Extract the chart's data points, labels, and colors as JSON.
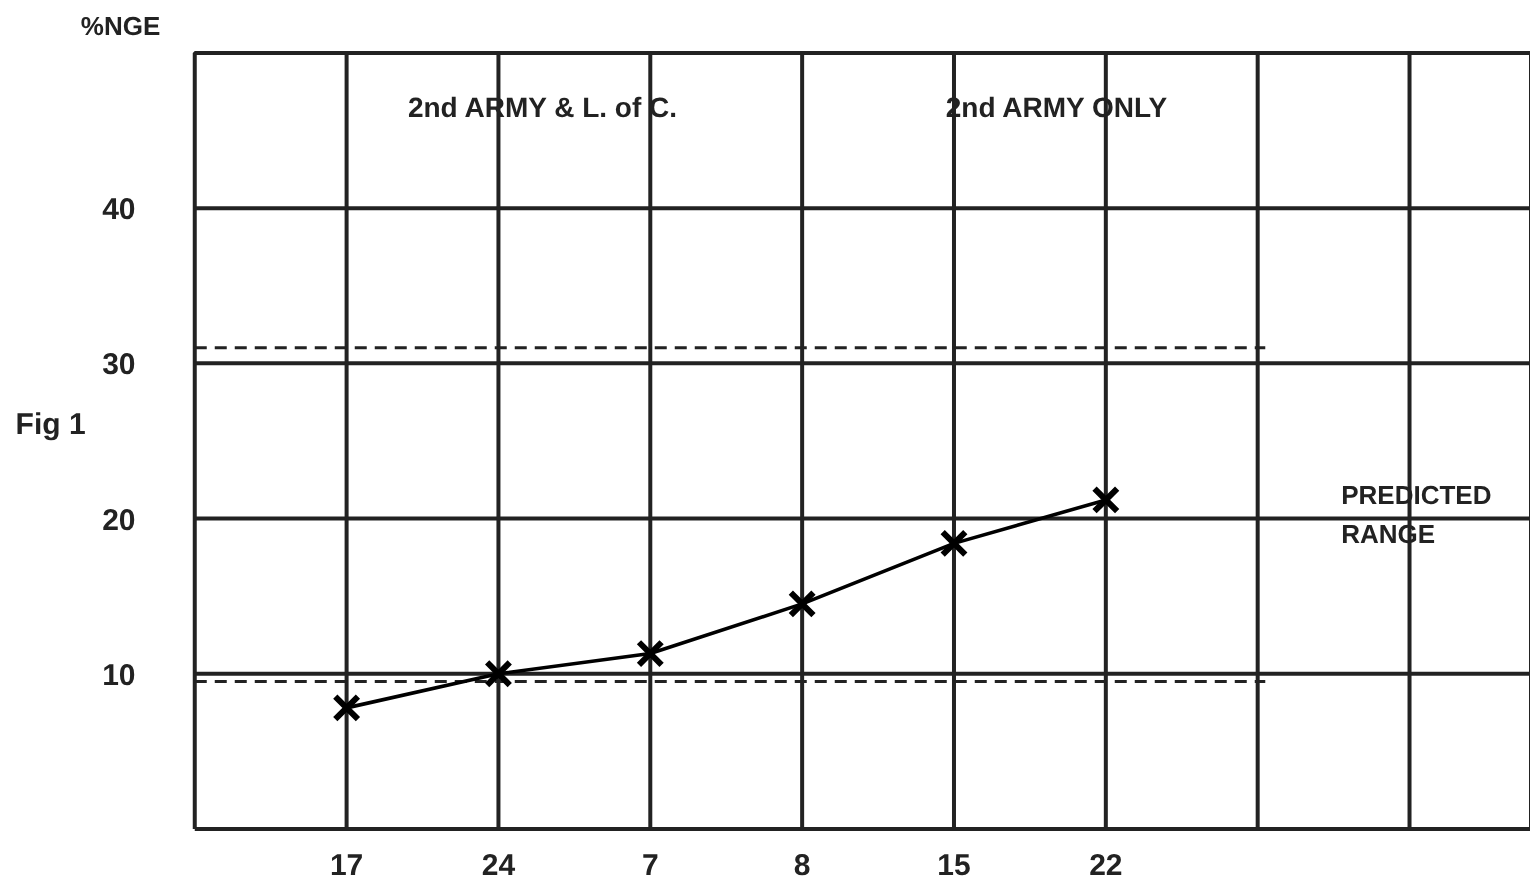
{
  "chart_data": {
    "type": "line",
    "ylabel": "%NGE",
    "categories": [
      "17",
      "24",
      "7",
      "8",
      "15",
      "22",
      null,
      null
    ],
    "series": [
      {
        "color": "#000000",
        "values": [
          7.8,
          10,
          11.3,
          14.5,
          18.4,
          21.2,
          null,
          null
        ]
      }
    ],
    "ylim": [
      0,
      50
    ],
    "yticks": [
      10,
      20,
      30,
      40
    ],
    "grid": true,
    "marker": "cross",
    "line_style": "solid",
    "ref_lines": [
      {
        "axis": "y",
        "value": 31,
        "line_style": "dashed"
      },
      {
        "axis": "y",
        "value": 9.5,
        "line_style": "dashed"
      }
    ],
    "annotations": [
      "2nd ARMY & L. of C.",
      "2nd ARMY ONLY",
      "Fig 1",
      "PREDICTED RANGE"
    ]
  }
}
